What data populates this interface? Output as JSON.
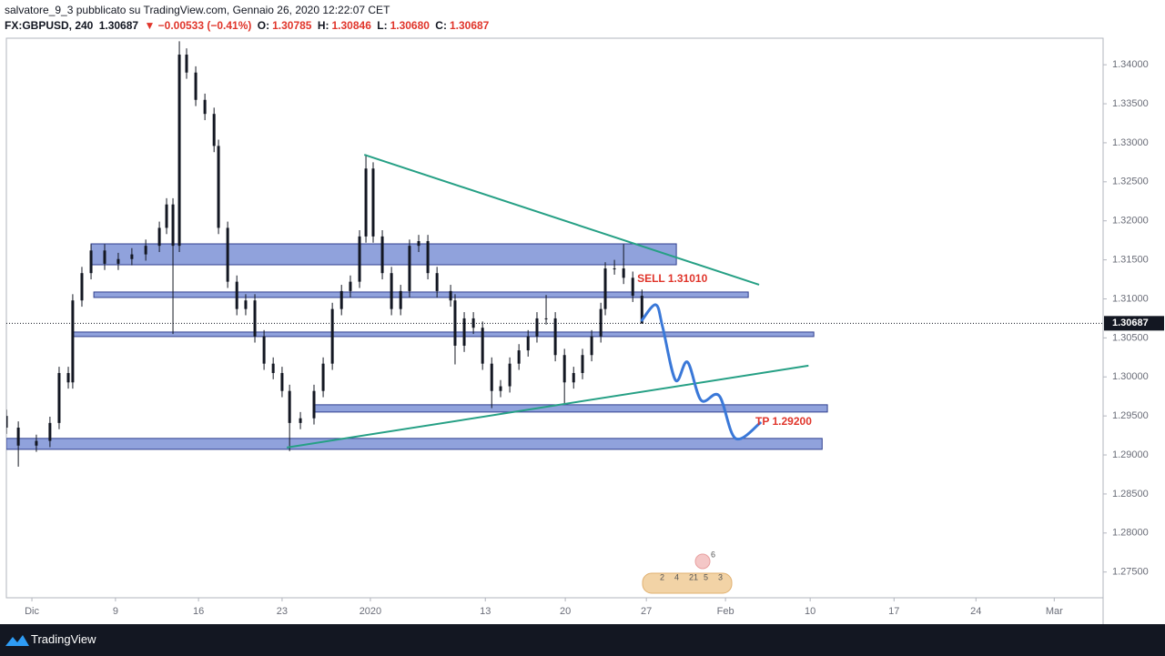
{
  "header": {
    "author_line": "salvatore_9_3 pubblicato su TradingView.com, Gennaio 26, 2020 12:22:07 CET",
    "symbol": "FX:GBPUSD, 240",
    "last": "1.30687",
    "change": "▼ −0.00533 (−0.41%)",
    "o_label": "O:",
    "o": "1.30785",
    "h_label": "H:",
    "h": "1.30846",
    "l_label": "L:",
    "l": "1.30680",
    "c_label": "C:",
    "c": "1.30687"
  },
  "footer": {
    "brand": "TradingView"
  },
  "chart_data": {
    "type": "candlestick",
    "candle_color": "#131722",
    "xlim": [
      0,
      395
    ],
    "ylim": [
      1.2717,
      1.3434
    ],
    "grid": false,
    "xticks": [
      {
        "value": 9.2,
        "label": "Dic"
      },
      {
        "value": 39.3,
        "label": "9"
      },
      {
        "value": 69.2,
        "label": "16"
      },
      {
        "value": 99.3,
        "label": "23"
      },
      {
        "value": 131.1,
        "label": "2020"
      },
      {
        "value": 172.5,
        "label": "13"
      },
      {
        "value": 201.3,
        "label": "20"
      },
      {
        "value": 230.5,
        "label": "27"
      },
      {
        "value": 259.0,
        "label": "Feb"
      },
      {
        "value": 289.5,
        "label": "10"
      },
      {
        "value": 319.7,
        "label": "17"
      },
      {
        "value": 349.2,
        "label": "24"
      },
      {
        "value": 377.4,
        "label": "Mar"
      }
    ],
    "yticks": [
      {
        "value": 1.34,
        "label": "1.34000"
      },
      {
        "value": 1.335,
        "label": "1.33500"
      },
      {
        "value": 1.33,
        "label": "1.33000"
      },
      {
        "value": 1.325,
        "label": "1.32500"
      },
      {
        "value": 1.32,
        "label": "1.32000"
      },
      {
        "value": 1.315,
        "label": "1.31500"
      },
      {
        "value": 1.31,
        "label": "1.31000"
      },
      {
        "value": 1.305,
        "label": "1.30500"
      },
      {
        "value": 1.3,
        "label": "1.30000"
      },
      {
        "value": 1.295,
        "label": "1.29500"
      },
      {
        "value": 1.29,
        "label": "1.29000"
      },
      {
        "value": 1.285,
        "label": "1.28500"
      },
      {
        "value": 1.28,
        "label": "1.28000"
      },
      {
        "value": 1.275,
        "label": "1.27500"
      }
    ],
    "last_price": 1.30687,
    "x": [
      0,
      4.3,
      10.8,
      15.7,
      19.0,
      22.3,
      23.9,
      27.2,
      30.5,
      35.4,
      40.3,
      45.2,
      50.2,
      55.1,
      57.7,
      60.0,
      62.3,
      64.9,
      68.2,
      71.5,
      74.8,
      76.4,
      79.7,
      83.0,
      86.2,
      89.5,
      92.8,
      96.1,
      99.3,
      102.0,
      105.9,
      110.8,
      114.1,
      117.4,
      120.7,
      123.9,
      127.2,
      129.5,
      132.1,
      135.4,
      138.7,
      142.0,
      145.2,
      148.5,
      151.8,
      155.1,
      160.0,
      161.6,
      164.9,
      168.2,
      171.5,
      174.8,
      178.0,
      181.3,
      184.6,
      187.9,
      191.1,
      194.4,
      197.7,
      201.0,
      204.3,
      207.5,
      210.8,
      214.1,
      215.7,
      219.0,
      222.3,
      225.6,
      228.9
    ],
    "open": [
      1.295,
      1.2935,
      1.2912,
      1.2918,
      1.2941,
      1.3005,
      1.2993,
      1.3098,
      1.3133,
      1.3162,
      1.3145,
      1.3151,
      1.3157,
      1.3168,
      1.3191,
      1.3221,
      1.3168,
      1.3413,
      1.339,
      1.3355,
      1.3337,
      1.3296,
      1.3191,
      1.3122,
      1.3087,
      1.3098,
      1.3052,
      1.3017,
      1.3005,
      1.2982,
      1.2941,
      1.2947,
      1.2982,
      1.3017,
      1.3087,
      1.311,
      1.3122,
      1.318,
      1.3267,
      1.318,
      1.3133,
      1.3087,
      1.311,
      1.3168,
      1.3174,
      1.3133,
      1.311,
      1.3098,
      1.304,
      1.3075,
      1.3063,
      1.3017,
      1.2982,
      1.2988,
      1.3017,
      1.3034,
      1.3052,
      1.3075,
      1.3075,
      1.3028,
      1.2993,
      1.3005,
      1.3028,
      1.3052,
      1.3087,
      1.3139,
      1.3139,
      1.3127,
      1.3104
    ],
    "high": [
      1.2958,
      1.2943,
      1.2926,
      1.2949,
      1.3013,
      1.3013,
      1.3106,
      1.3141,
      1.317,
      1.317,
      1.3159,
      1.3165,
      1.3176,
      1.3199,
      1.3229,
      1.3229,
      1.343,
      1.3421,
      1.3398,
      1.3363,
      1.3345,
      1.3304,
      1.3199,
      1.313,
      1.3106,
      1.3106,
      1.306,
      1.3025,
      1.3013,
      1.299,
      1.2955,
      1.299,
      1.3025,
      1.3095,
      1.3118,
      1.313,
      1.3188,
      1.3285,
      1.3275,
      1.3188,
      1.3141,
      1.3118,
      1.3176,
      1.3182,
      1.3182,
      1.3141,
      1.3118,
      1.3106,
      1.3083,
      1.3083,
      1.3071,
      1.3025,
      1.2996,
      1.3025,
      1.3042,
      1.306,
      1.3083,
      1.3105,
      1.3083,
      1.3036,
      1.3013,
      1.3036,
      1.306,
      1.3095,
      1.3147,
      1.315,
      1.317,
      1.3135,
      1.3112
    ],
    "low": [
      1.2927,
      1.2885,
      1.2904,
      1.291,
      1.2933,
      1.2985,
      1.2985,
      1.309,
      1.3125,
      1.3137,
      1.3137,
      1.3143,
      1.3149,
      1.316,
      1.3183,
      1.3055,
      1.316,
      1.3382,
      1.3347,
      1.3329,
      1.3288,
      1.3183,
      1.3114,
      1.3079,
      1.3079,
      1.3044,
      1.3009,
      1.2997,
      1.2974,
      1.2905,
      1.2933,
      1.2939,
      1.2974,
      1.3009,
      1.3079,
      1.3102,
      1.3114,
      1.3172,
      1.3172,
      1.3125,
      1.3079,
      1.3079,
      1.3102,
      1.316,
      1.3125,
      1.3102,
      1.309,
      1.3016,
      1.3032,
      1.3055,
      1.3009,
      1.296,
      1.2974,
      1.298,
      1.3009,
      1.3026,
      1.3044,
      1.3067,
      1.302,
      1.2965,
      1.2985,
      1.2997,
      1.302,
      1.3044,
      1.3079,
      1.3131,
      1.3119,
      1.3096,
      1.3068
    ],
    "close": [
      1.2935,
      1.2912,
      1.2918,
      1.2941,
      1.3005,
      1.2993,
      1.3098,
      1.3133,
      1.3162,
      1.3145,
      1.3151,
      1.3157,
      1.3168,
      1.3191,
      1.3221,
      1.3168,
      1.3413,
      1.339,
      1.3355,
      1.3337,
      1.3296,
      1.3191,
      1.3122,
      1.3087,
      1.3098,
      1.3052,
      1.3017,
      1.3005,
      1.2982,
      1.2941,
      1.2947,
      1.2982,
      1.3017,
      1.3087,
      1.311,
      1.3122,
      1.318,
      1.3267,
      1.318,
      1.3133,
      1.3087,
      1.311,
      1.3168,
      1.3174,
      1.3133,
      1.311,
      1.3098,
      1.304,
      1.3075,
      1.3063,
      1.3017,
      1.2982,
      1.2988,
      1.3017,
      1.3034,
      1.3052,
      1.3075,
      1.3075,
      1.3028,
      1.2993,
      1.3005,
      1.3028,
      1.3052,
      1.3087,
      1.3139,
      1.3139,
      1.3127,
      1.3104,
      1.30687
    ],
    "zone_color": "#7d92d6",
    "zone_border": "#2f3f8f",
    "zones": [
      {
        "x": [
          30.5,
          241.3
        ],
        "y": [
          1.31437,
          1.31705
        ]
      },
      {
        "x": [
          31.5,
          267.2
        ],
        "y": [
          1.31018,
          1.31088
        ]
      },
      {
        "x": [
          23.9,
          290.8
        ],
        "y": [
          1.30517,
          1.30575
        ]
      },
      {
        "x": [
          111.1,
          295.7
        ],
        "y": [
          1.2955,
          1.29643
        ]
      },
      {
        "x": [
          0,
          293.8
        ],
        "y": [
          1.29072,
          1.29212
        ]
      }
    ],
    "trendline_color": "#26a085",
    "trendlines": [
      {
        "x": [
          128.9,
          271.1
        ],
        "y": [
          1.32847,
          1.31181
        ]
      },
      {
        "x": [
          101.0,
          288.9
        ],
        "y": [
          1.29095,
          1.30144
        ]
      }
    ],
    "projection_color": "#3a78d8",
    "projection": {
      "x": [
        228.9,
        233.9,
        236.4,
        241.0,
        245.3,
        250.2,
        256.7,
        262.6,
        271.5
      ],
      "y": [
        1.30726,
        1.30924,
        1.30633,
        1.29958,
        1.3019,
        1.29701,
        1.29759,
        1.29212,
        1.2941
      ]
    },
    "annotation_color": "#e0352b",
    "annotations": [
      {
        "text": "SELL 1.31010",
        "x": 227.2,
        "y": 1.31251
      },
      {
        "text": "TP 1.29200",
        "x": 269.8,
        "y": 1.29421
      }
    ],
    "events": {
      "top": "6",
      "row": [
        "2",
        "4",
        "21",
        "5",
        "3"
      ]
    }
  }
}
